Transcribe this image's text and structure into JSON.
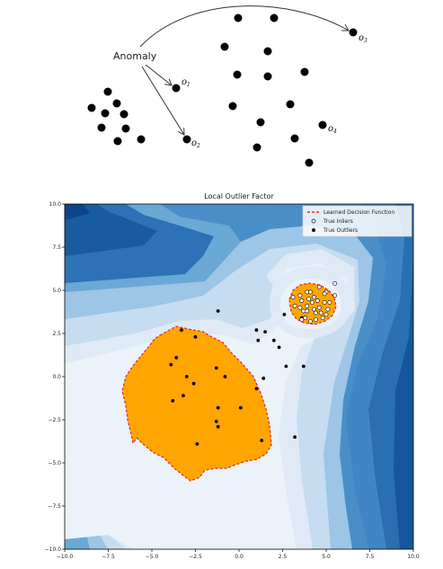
{
  "illustration": {
    "anomaly_label": "Anomaly",
    "outlier_labels": [
      "o",
      "o",
      "o",
      "o"
    ],
    "outlier_subscripts": [
      "1",
      "2",
      "3",
      "4"
    ]
  },
  "chart_data": {
    "type": "scatter",
    "title": "Local Outlier Factor",
    "xlabel": "",
    "ylabel": "",
    "xlim": [
      -10.0,
      10.0
    ],
    "ylim": [
      -10.0,
      10.0
    ],
    "x_ticks": [
      "−10.0",
      "−7.5",
      "−5.0",
      "−2.5",
      "0.0",
      "2.5",
      "5.0",
      "7.5",
      "10.0"
    ],
    "y_ticks": [
      "10.0",
      "7.5",
      "5.0",
      "2.5",
      "0.0",
      "−2.5",
      "−5.0",
      "−7.5",
      "−10.0"
    ],
    "legend": {
      "placement": "top-right",
      "entries": [
        "Learned Decision Function",
        "True Inliers",
        "True Outliers"
      ]
    },
    "colors": {
      "background_scale": "#08519c",
      "inlier_region": "#ffa500",
      "decision_boundary": "#ff0000"
    },
    "series": [
      {
        "name": "True Outliers",
        "points": [
          [
            -3.6,
            1.1
          ],
          [
            -3.9,
            0.7
          ],
          [
            -3.0,
            0.0
          ],
          [
            -1.3,
            0.5
          ],
          [
            -2.6,
            -0.4
          ],
          [
            -3.8,
            -1.4
          ],
          [
            -3.2,
            -1.1
          ],
          [
            -0.8,
            0.0
          ],
          [
            -1.2,
            -1.8
          ],
          [
            -1.3,
            -2.6
          ],
          [
            -1.2,
            -2.9
          ],
          [
            0.1,
            -1.8
          ],
          [
            -2.4,
            -3.9
          ],
          [
            1.0,
            -0.7
          ],
          [
            1.3,
            -3.7
          ],
          [
            1.4,
            -0.1
          ],
          [
            2.0,
            2.1
          ],
          [
            1.1,
            2.1
          ],
          [
            1.5,
            2.6
          ],
          [
            1.0,
            2.7
          ],
          [
            2.3,
            1.7
          ],
          [
            2.7,
            0.6
          ],
          [
            3.7,
            0.6
          ],
          [
            3.2,
            -3.5
          ],
          [
            -1.2,
            3.8
          ],
          [
            -3.3,
            2.7
          ],
          [
            -2.5,
            2.3
          ],
          [
            2.6,
            3.6
          ],
          [
            3.6,
            3.4
          ]
        ]
      },
      {
        "name": "True Inliers",
        "points": [
          [
            5.5,
            5.4
          ],
          [
            4.6,
            5.2
          ],
          [
            5.0,
            4.9
          ],
          [
            3.9,
            4.9
          ],
          [
            5.5,
            4.7
          ],
          [
            3.1,
            4.6
          ],
          [
            4.3,
            4.6
          ],
          [
            3.6,
            4.4
          ],
          [
            4.9,
            4.3
          ],
          [
            3.5,
            4.0
          ],
          [
            4.6,
            4.0
          ],
          [
            5.1,
            3.9
          ],
          [
            3.9,
            3.8
          ],
          [
            4.4,
            3.7
          ],
          [
            3.8,
            3.4
          ],
          [
            4.8,
            3.4
          ],
          [
            4.1,
            3.2
          ],
          [
            3.6,
            3.3
          ],
          [
            4.2,
            4.3
          ],
          [
            4.7,
            3.7
          ],
          [
            3.2,
            4.1
          ],
          [
            4.9,
            4.8
          ],
          [
            3.5,
            4.7
          ],
          [
            4.0,
            4.5
          ],
          [
            5.2,
            4.3
          ],
          [
            4.3,
            3.9
          ],
          [
            3.7,
            3.8
          ],
          [
            4.5,
            4.4
          ],
          [
            3.9,
            4.1
          ],
          [
            5.0,
            3.6
          ],
          [
            4.1,
            4.9
          ],
          [
            4.4,
            3.3
          ]
        ]
      }
    ]
  }
}
